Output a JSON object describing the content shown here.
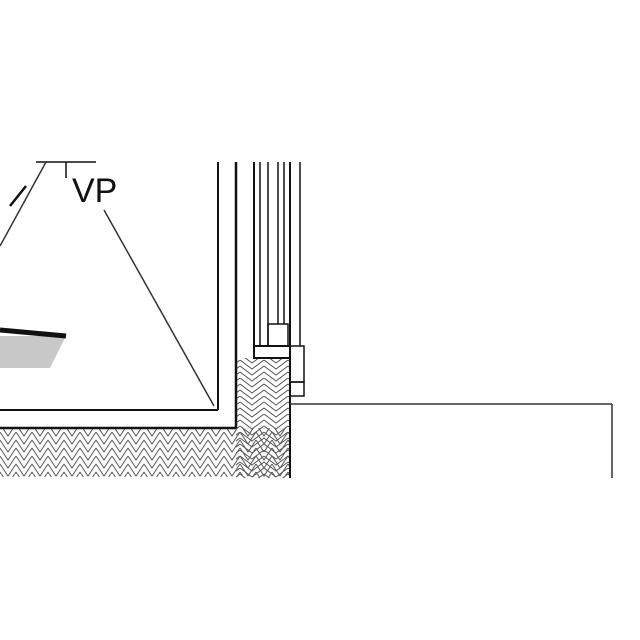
{
  "drawing": {
    "label": "VP"
  },
  "colors": {
    "line": "#111111",
    "fill_gray": "#c8c8c8",
    "hatch": "#555555",
    "background": "#ffffff"
  }
}
